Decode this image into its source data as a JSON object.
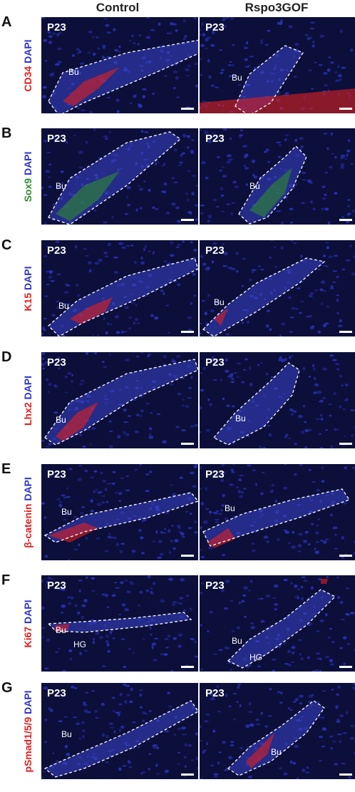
{
  "columns": [
    "Control",
    "Rspo3GOF"
  ],
  "rows": [
    {
      "letter": "A",
      "marker": "CD34",
      "marker_color": "#e02020",
      "left": {
        "age": "P23",
        "labels": [
          "Bu"
        ]
      },
      "right": {
        "age": "P23",
        "labels": [
          "Bu"
        ]
      }
    },
    {
      "letter": "B",
      "marker": "Sox9",
      "marker_color": "#2e8b2e",
      "left": {
        "age": "P23",
        "labels": [
          "Bu"
        ]
      },
      "right": {
        "age": "P23",
        "labels": [
          "Bu"
        ]
      }
    },
    {
      "letter": "C",
      "marker": "K15",
      "marker_color": "#e02020",
      "left": {
        "age": "P23",
        "labels": [
          "Bu"
        ]
      },
      "right": {
        "age": "P23",
        "labels": [
          "Bu"
        ]
      }
    },
    {
      "letter": "D",
      "marker": "Lhx2",
      "marker_color": "#e02020",
      "left": {
        "age": "P23",
        "labels": [
          "Bu"
        ]
      },
      "right": {
        "age": "P23",
        "labels": [
          "Bu"
        ]
      }
    },
    {
      "letter": "E",
      "marker": "β-catenin",
      "marker_color": "#e02020",
      "left": {
        "age": "P23",
        "labels": [
          "Bu"
        ]
      },
      "right": {
        "age": "P23",
        "labels": [
          "Bu"
        ]
      }
    },
    {
      "letter": "F",
      "marker": "Ki67",
      "marker_color": "#e02020",
      "left": {
        "age": "P23",
        "labels": [
          "Bu",
          "HG"
        ]
      },
      "right": {
        "age": "P23",
        "labels": [
          "Bu",
          "HG"
        ]
      }
    },
    {
      "letter": "G",
      "marker": "pSmad1/5/9",
      "marker_color": "#e02020",
      "left": {
        "age": "P23",
        "labels": [
          "Bu"
        ]
      },
      "right": {
        "age": "P23",
        "labels": [
          "Bu"
        ]
      }
    }
  ],
  "counterstain": "DAPI",
  "colors": {
    "panel_bg": "#05071a",
    "dapi": "#2f35c8",
    "red": "#e02020",
    "green": "#2e8b2e",
    "outline": "#ffffff"
  }
}
